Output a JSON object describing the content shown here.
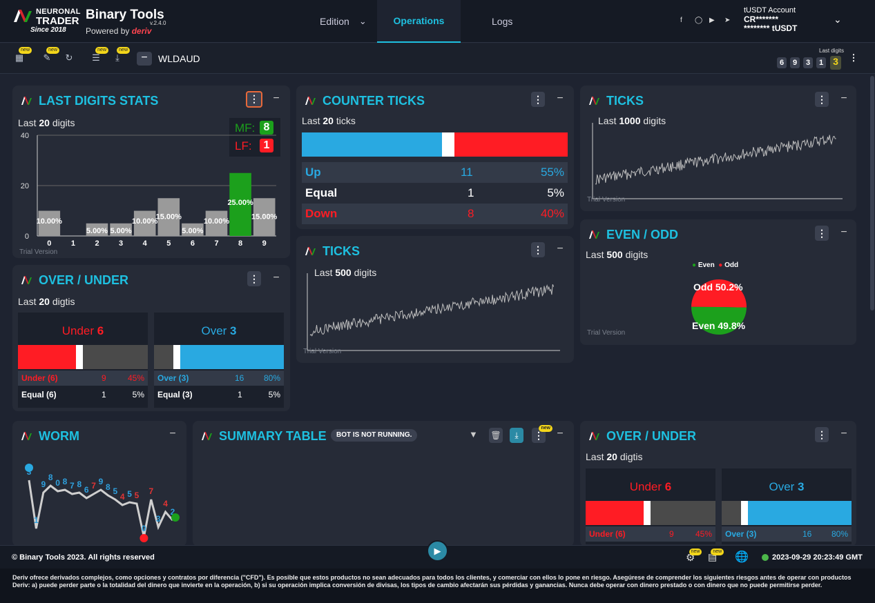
{
  "app": {
    "logo_line1": "NEURONAL",
    "logo_line2": "TRADER",
    "since": "Since 2018",
    "brand": "Binary Tools",
    "version": "v.2.4.0",
    "powered": "Powered by",
    "powered_brand": "deriv"
  },
  "nav": {
    "edition": "Edition",
    "operations": "Operations",
    "logs": "Logs"
  },
  "account": {
    "name": "tUSDT Account",
    "id": "CR*******",
    "balance": "******** tUSDT"
  },
  "toolbar": {
    "new_badge": "new",
    "symbol": "WLDAUD",
    "last_digits_label": "Last digits",
    "last_digits": [
      "6",
      "9",
      "3",
      "1",
      "3"
    ]
  },
  "last_digits_stats": {
    "title": "LAST DIGITS STATS",
    "subtitle_prefix": "Last",
    "count": "20",
    "subtitle_suffix": "digits",
    "mf_label": "MF:",
    "mf_value": "8",
    "lf_label": "LF:",
    "lf_value": "1",
    "trial": "Trial Version"
  },
  "counter_ticks": {
    "title": "COUNTER TICKS",
    "subtitle_prefix": "Last",
    "count": "20",
    "subtitle_suffix": "ticks",
    "rows": [
      {
        "label": "Up",
        "count": "11",
        "pct": "55%",
        "color": "#29a9e1"
      },
      {
        "label": "Equal",
        "count": "1",
        "pct": "5%",
        "color": "#ffffff"
      },
      {
        "label": "Down",
        "count": "8",
        "pct": "40%",
        "color": "#ff1c24"
      }
    ],
    "bar": {
      "up": 0.55,
      "equal": 0.05,
      "down": 0.4
    }
  },
  "ticks_1000": {
    "title": "TICKS",
    "subtitle_prefix": "Last",
    "count": "1000",
    "subtitle_suffix": "digits",
    "trial": "Trial Version"
  },
  "ticks_500": {
    "title": "TICKS",
    "subtitle_prefix": "Last",
    "count": "500",
    "subtitle_suffix": "digits",
    "trial": "Trial Version"
  },
  "even_odd": {
    "title": "EVEN / ODD",
    "subtitle_prefix": "Last",
    "count": "500",
    "subtitle_suffix": "digits",
    "legend_even": "Even",
    "legend_odd": "Odd",
    "odd_label": "Odd 50.2%",
    "even_label": "Even 49.8%",
    "odd_value": 50.2,
    "even_value": 49.8,
    "trial": "Trial Version"
  },
  "over_under_1": {
    "title": "OVER / UNDER",
    "subtitle_prefix": "Last",
    "count": "20",
    "subtitle_suffix": "digtis",
    "under": {
      "head_label": "Under",
      "head_value": "6",
      "row_label": "Under (6)",
      "count": "9",
      "pct": "45%",
      "eq_label": "Equal (6)",
      "eq_count": "1",
      "eq_pct": "5%",
      "fill": 0.45
    },
    "over": {
      "head_label": "Over",
      "head_value": "3",
      "row_label": "Over (3)",
      "count": "16",
      "pct": "80%",
      "eq_label": "Equal (3)",
      "eq_count": "1",
      "eq_pct": "5%",
      "fill": 0.8
    }
  },
  "over_under_2": {
    "title": "OVER / UNDER",
    "subtitle_prefix": "Last",
    "count": "20",
    "subtitle_suffix": "digtis",
    "under": {
      "head_label": "Under",
      "head_value": "6",
      "row_label": "Under (6)",
      "count": "9",
      "pct": "45%"
    },
    "over": {
      "head_label": "Over",
      "head_value": "3",
      "row_label": "Over (3)",
      "count": "16",
      "pct": "80%"
    }
  },
  "worm": {
    "title": "WORM",
    "digits": [
      "3",
      "1",
      "9",
      "8",
      "0",
      "8",
      "7",
      "8",
      "6",
      "7",
      "9",
      "8",
      "5",
      "4",
      "5",
      "5",
      "0",
      "7",
      "3",
      "4",
      "2"
    ]
  },
  "summary": {
    "title": "SUMMARY TABLE",
    "status": "BOT IS NOT RUNNING.",
    "new_badge": "new"
  },
  "footer": {
    "copyright": "© Binary Tools 2023. All rights reserved",
    "datetime": "2023-09-29 20:23:49 GMT",
    "new_badge": "new"
  },
  "disclaimer": "Deriv ofrece derivados complejos, como opciones y contratos por diferencia (\"CFD\"). Es posible que estos productos no sean adecuados para todos los clientes, y comerciar con ellos lo pone en riesgo. Asegúrese de comprender los siguientes riesgos antes de operar con productos Deriv: a) puede perder parte o la totalidad del dinero que invierte en la operación, b) si su operación implica conversión de divisas, los tipos de cambio afectarán sus pérdidas y ganancias. Nunca debe operar con dinero prestado o con dinero que no puede permitirse perder.",
  "chart_data": [
    {
      "type": "bar",
      "categories": [
        "0",
        "1",
        "2",
        "3",
        "4",
        "5",
        "6",
        "7",
        "8",
        "9"
      ],
      "values": [
        10,
        0,
        5,
        5,
        10,
        15,
        5,
        10,
        25,
        15
      ],
      "labels": [
        "10.00%",
        "",
        "5.00%",
        "5.00%",
        "10.00%",
        "15.00%",
        "5.00%",
        "10.00%",
        "25.00%",
        "15.00%"
      ],
      "highlight_index": 8,
      "highlight_color": "#1ca01c",
      "bar_color": "#9a9a9a",
      "y_ticks": [
        "0",
        "20",
        "40"
      ],
      "ylim": [
        0,
        40
      ]
    },
    {
      "type": "pie",
      "categories": [
        "Even",
        "Odd"
      ],
      "values": [
        49.8,
        50.2
      ],
      "colors": [
        "#1ca01c",
        "#ff1c24"
      ]
    }
  ]
}
